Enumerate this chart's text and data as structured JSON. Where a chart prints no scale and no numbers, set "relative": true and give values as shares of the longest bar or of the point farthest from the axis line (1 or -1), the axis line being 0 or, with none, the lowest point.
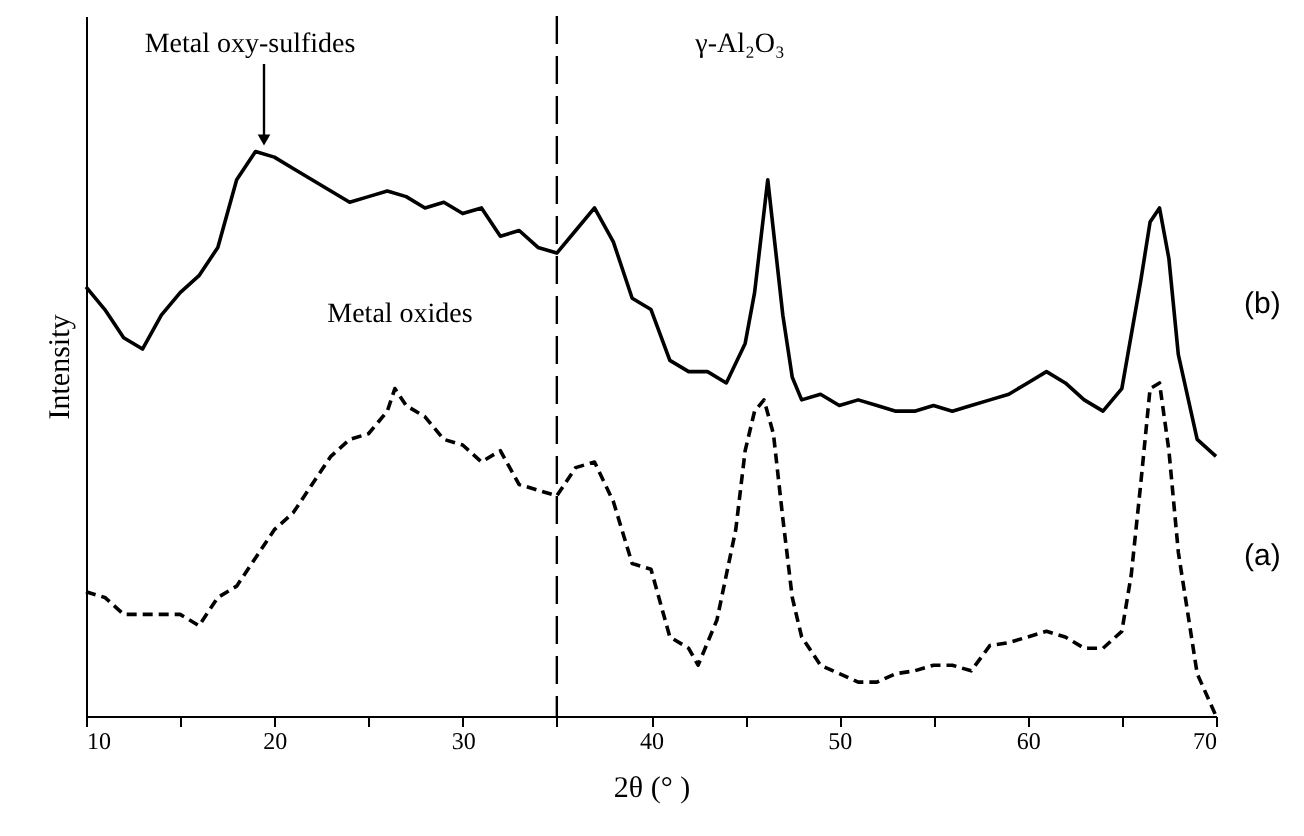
{
  "chart_data": {
    "type": "line",
    "relative": true,
    "xlabel": "2θ (° )",
    "ylabel": "Intensity",
    "xlim": [
      10,
      70
    ],
    "xticks": [
      10,
      {
        "value": 15,
        "label": null
      },
      20,
      {
        "value": 25,
        "label": null
      },
      30,
      {
        "value": 35,
        "label": null
      },
      40,
      {
        "value": 45,
        "label": null
      },
      50,
      {
        "value": 55,
        "label": null
      },
      60,
      {
        "value": 65,
        "label": null
      },
      70
    ],
    "grid": false,
    "legend": false,
    "marker": "none",
    "ref_lines": [
      {
        "axis": "x",
        "value": 35,
        "label": null,
        "color": "#000000",
        "line_style": "dashed"
      }
    ],
    "annotations": [
      "Metal oxy-sulfides",
      "Metal oxides",
      "γ-Al₂O₃"
    ],
    "series": [
      {
        "name": "(b)",
        "color": "#000000",
        "line_style": "solid",
        "x": [
          10,
          11,
          12,
          13,
          14,
          15,
          16,
          17,
          18,
          19,
          20,
          21,
          22,
          23,
          24,
          25,
          26,
          27,
          28,
          29,
          30,
          31,
          32,
          33,
          34,
          35,
          36,
          37,
          38,
          39,
          40,
          41,
          42,
          43,
          44,
          45,
          45.5,
          46.2,
          47,
          47.5,
          48,
          49,
          50,
          51,
          52,
          53,
          54,
          55,
          56,
          57,
          58,
          59,
          60,
          61,
          62,
          63,
          64,
          65,
          66,
          66.5,
          67,
          67.5,
          68,
          69,
          70
        ],
        "values": [
          0.76,
          0.72,
          0.67,
          0.65,
          0.71,
          0.75,
          0.78,
          0.83,
          0.95,
          1.0,
          0.99,
          0.97,
          0.95,
          0.93,
          0.91,
          0.92,
          0.93,
          0.92,
          0.9,
          0.91,
          0.89,
          0.9,
          0.85,
          0.86,
          0.83,
          0.82,
          0.86,
          0.9,
          0.84,
          0.74,
          0.72,
          0.63,
          0.61,
          0.61,
          0.59,
          0.66,
          0.75,
          0.95,
          0.71,
          0.6,
          0.56,
          0.57,
          0.55,
          0.56,
          0.55,
          0.54,
          0.54,
          0.55,
          0.54,
          0.55,
          0.56,
          0.57,
          0.59,
          0.61,
          0.59,
          0.56,
          0.54,
          0.58,
          0.77,
          0.875,
          0.9,
          0.81,
          0.64,
          0.49,
          0.46
        ]
      },
      {
        "name": "(a)",
        "color": "#000000",
        "line_style": "dashed",
        "x": [
          10,
          11,
          12,
          13,
          14,
          15,
          16,
          17,
          18,
          19,
          20,
          21,
          22,
          23,
          24,
          25,
          26,
          26.4,
          27,
          28,
          29,
          30,
          31,
          32,
          33,
          34,
          35,
          36,
          37,
          38,
          39,
          40,
          41,
          42,
          42.5,
          43.5,
          44.5,
          45,
          45.5,
          46,
          46.5,
          47,
          47.5,
          48,
          49,
          50,
          51,
          52,
          53,
          54,
          55,
          56,
          57,
          58,
          59,
          60,
          61,
          62,
          63,
          64,
          65,
          65.5,
          66,
          66.5,
          67,
          67.5,
          68,
          69,
          70
        ],
        "values": [
          0.22,
          0.21,
          0.18,
          0.18,
          0.18,
          0.18,
          0.16,
          0.21,
          0.23,
          0.28,
          0.33,
          0.36,
          0.41,
          0.46,
          0.49,
          0.5,
          0.54,
          0.58,
          0.55,
          0.53,
          0.49,
          0.48,
          0.45,
          0.47,
          0.41,
          0.4,
          0.39,
          0.44,
          0.45,
          0.38,
          0.27,
          0.26,
          0.14,
          0.12,
          0.09,
          0.17,
          0.33,
          0.47,
          0.54,
          0.56,
          0.5,
          0.35,
          0.21,
          0.14,
          0.09,
          0.075,
          0.06,
          0.06,
          0.075,
          0.08,
          0.09,
          0.09,
          0.08,
          0.125,
          0.13,
          0.14,
          0.15,
          0.14,
          0.12,
          0.12,
          0.15,
          0.25,
          0.41,
          0.58,
          0.59,
          0.47,
          0.29,
          0.075,
          0.0
        ]
      }
    ]
  }
}
